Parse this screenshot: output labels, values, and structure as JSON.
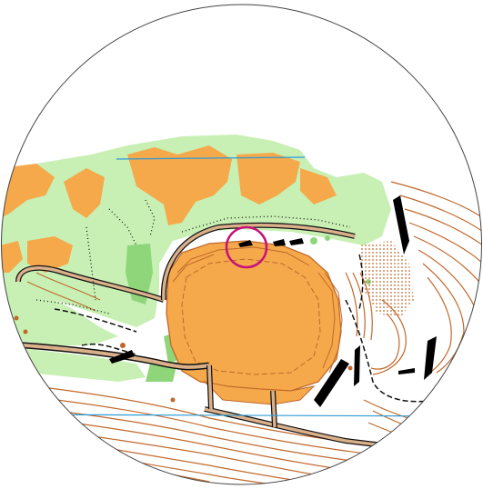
{
  "map": {
    "kind": "orienteering-map-circular-view",
    "colors": {
      "background": "#ffffff",
      "open_land_orange": "#f5a94a",
      "forest_green": "#c8f0b4",
      "dense_green": "#8fd67a",
      "contour_brown": "#c0682b",
      "path_black": "#111111",
      "track_fill": "#d9b08a",
      "water_blue": "#2f9bd6",
      "control_circle_magenta": "#c8127a",
      "cliff_black": "#000000"
    },
    "features": {
      "control_circle": "control-circle",
      "main_clearing": "large-open-area",
      "quarry_cliffs": "rock-cliffs",
      "blue_lines": "magnetic-north-lines"
    }
  }
}
